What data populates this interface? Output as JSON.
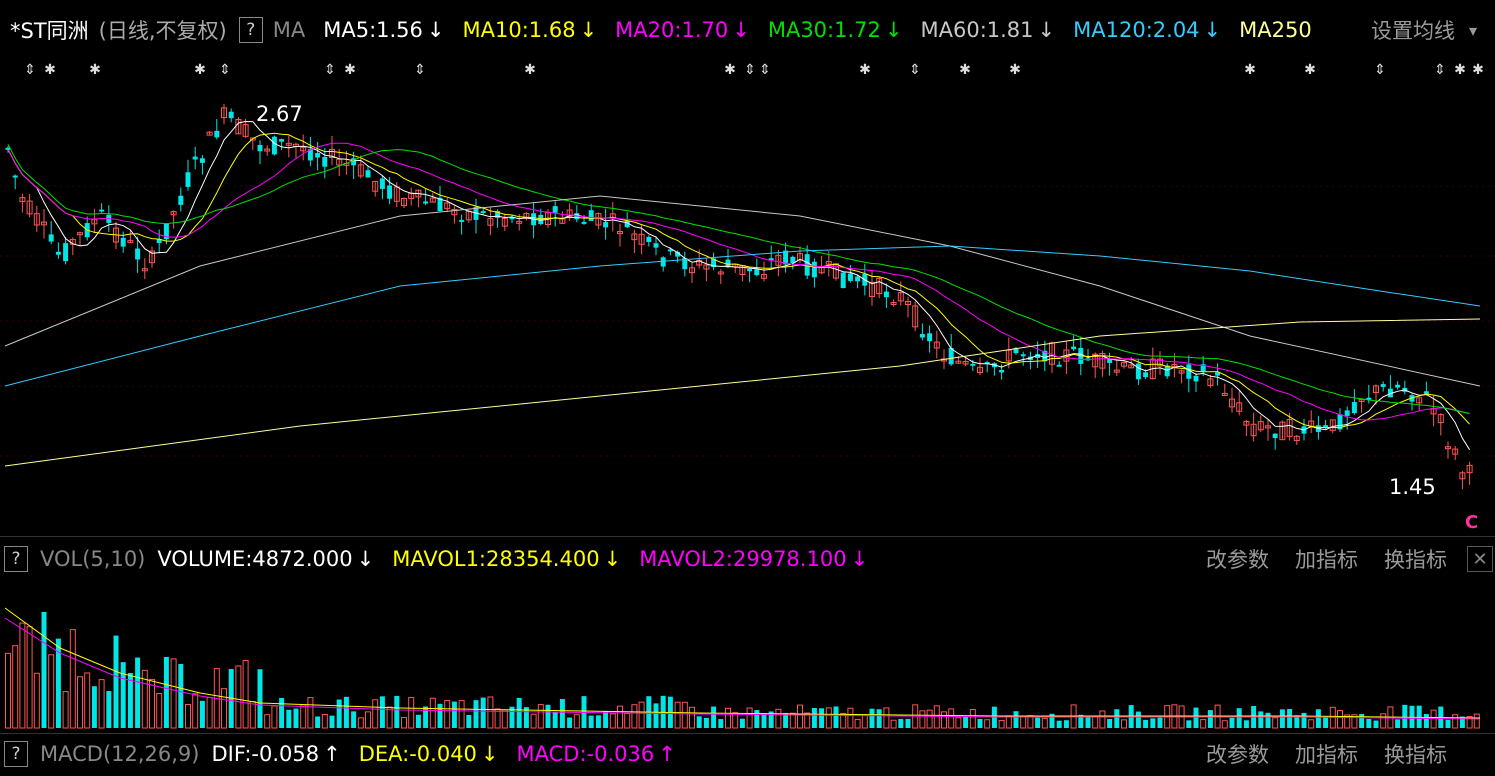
{
  "header": {
    "stock_name": "*ST同洲",
    "period_mode": "(日线,不复权)",
    "help_label": "?",
    "indicator_name": "MA",
    "ma_items": [
      {
        "label": "MA5:1.56",
        "arrow": "↓",
        "color": "#ffffff"
      },
      {
        "label": "MA10:1.68",
        "arrow": "↓",
        "color": "#ffff00"
      },
      {
        "label": "MA20:1.70",
        "arrow": "↓",
        "color": "#ff00ff"
      },
      {
        "label": "MA30:1.72",
        "arrow": "↓",
        "color": "#00e000"
      },
      {
        "label": "MA60:1.81",
        "arrow": "↓",
        "color": "#c8c8c8"
      },
      {
        "label": "MA120:2.04",
        "arrow": "↓",
        "color": "#33ccff"
      },
      {
        "label": "MA250",
        "arrow": "",
        "color": "#ffff99"
      }
    ],
    "settings_label": "设置均线",
    "dropdown_icon": "▾"
  },
  "price_chart": {
    "high_label": "2.67",
    "low_label": "1.45",
    "current_marker": "C"
  },
  "volume_panel": {
    "help_label": "?",
    "name": "VOL(5,10)",
    "items": [
      {
        "label": "VOLUME:4872.000",
        "arrow": "↓",
        "color": "#ffffff"
      },
      {
        "label": "MAVOL1:28354.400",
        "arrow": "↓",
        "color": "#ffff00"
      },
      {
        "label": "MAVOL2:29978.100",
        "arrow": "↓",
        "color": "#ff00ff"
      }
    ],
    "links": [
      "改参数",
      "加指标",
      "换指标"
    ],
    "close_label": "✕"
  },
  "macd_panel": {
    "help_label": "?",
    "name": "MACD(12,26,9)",
    "items": [
      {
        "label": "DIF:-0.058",
        "arrow": "↑",
        "color": "#ffffff"
      },
      {
        "label": "DEA:-0.040",
        "arrow": "↓",
        "color": "#ffff00"
      },
      {
        "label": "MACD:-0.036",
        "arrow": "↑",
        "color": "#ff00ff"
      }
    ],
    "links": [
      "改参数",
      "加指标",
      "换指标"
    ]
  },
  "colors": {
    "up": "#ff5555",
    "down": "#00e5e5",
    "ma5": "#ffffff",
    "ma10": "#ffff00",
    "ma20": "#ff00ff",
    "ma30": "#00e000",
    "ma60": "#c8c8c8",
    "ma120": "#33ccff",
    "ma250": "#ffff99"
  }
}
